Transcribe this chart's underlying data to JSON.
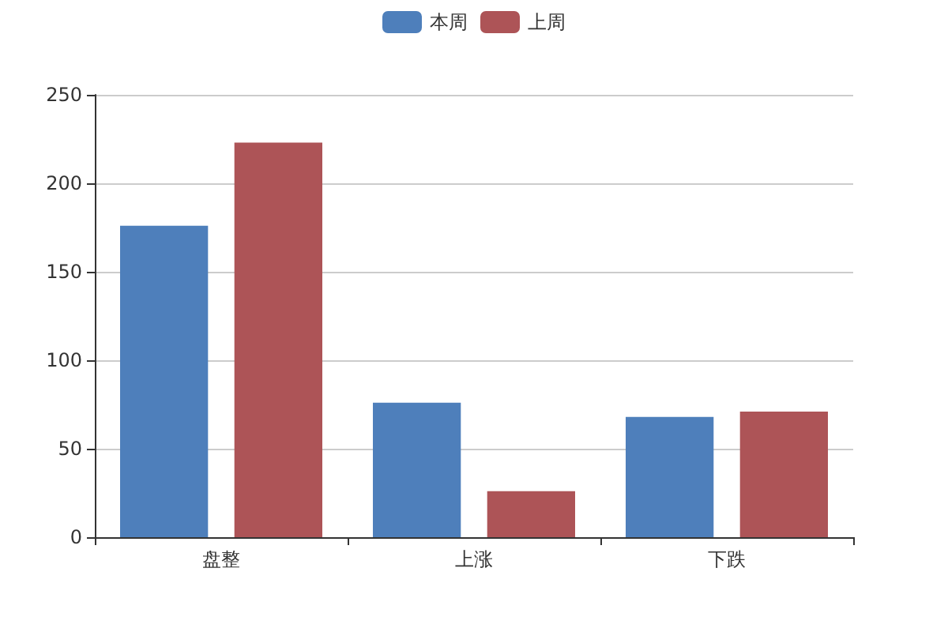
{
  "chart_data": {
    "type": "bar",
    "categories": [
      "盘整",
      "上涨",
      "下跌"
    ],
    "series": [
      {
        "name": "本周",
        "color": "#4e7fbb",
        "values": [
          176,
          76,
          68
        ]
      },
      {
        "name": "上周",
        "color": "#ad5457",
        "values": [
          223,
          26,
          71
        ]
      }
    ],
    "ylim": [
      0,
      250
    ],
    "yticks": [
      0,
      50,
      100,
      150,
      200,
      250
    ],
    "grid": "y",
    "legend": "top"
  }
}
